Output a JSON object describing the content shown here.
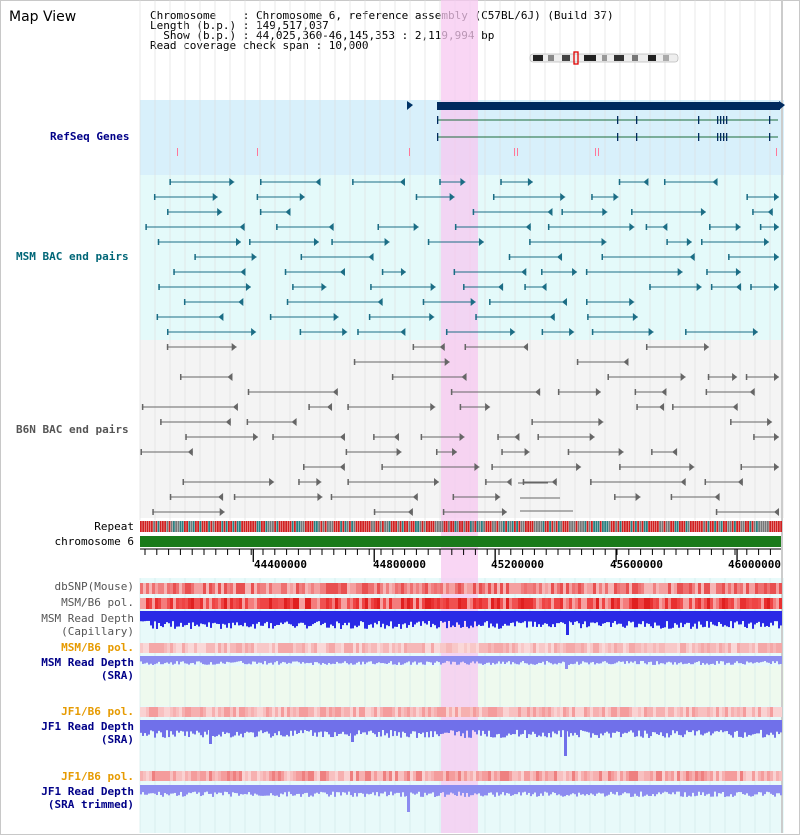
{
  "header": {
    "title": "Map View",
    "info_lines": [
      "Chromosome    : Chromosome 6, reference assembly (C57BL/6J) (Build 37)",
      "Length (b.p.) : 149,517,037",
      "  Show (b.p.) : 44,025,360-46,145,353 : 2,119,994 bp",
      "Read coverage check span : 10,000"
    ]
  },
  "tracks": {
    "refseq": "RefSeq Genes",
    "msm_bac": "MSM BAC end pairs",
    "b6n_bac": "B6N BAC end pairs",
    "repeat": "Repeat",
    "chromosome": "chromosome 6",
    "dbsnp": "dbSNP(Mouse)",
    "msm_b6_pol_1": "MSM/B6 pol.",
    "msm_depth_cap_1": "MSM Read Depth",
    "msm_depth_cap_2": "(Capillary)",
    "msm_b6_pol_2": "MSM/B6 pol.",
    "msm_depth_sra_1": "MSM Read Depth",
    "msm_depth_sra_2": "(SRA)",
    "jf1_b6_pol_1": "JF1/B6 pol.",
    "jf1_depth_sra_1": "JF1 Read Depth",
    "jf1_depth_sra_2": "(SRA)",
    "jf1_b6_pol_2": "JF1/B6 pol.",
    "jf1_depth_trim_1": "JF1 Read Depth",
    "jf1_depth_trim_2": "(SRA trimmed)"
  },
  "axis": {
    "ticks": [
      "44400000",
      "44800000",
      "45200000",
      "45600000",
      "46000000"
    ],
    "tick_values": [
      44400000,
      44800000,
      45200000,
      45600000,
      46000000
    ],
    "range": [
      44025360,
      46145353
    ]
  },
  "colors": {
    "label_blue": "#000088",
    "label_teal": "#006677",
    "label_gray": "#555555",
    "label_orange": "#e69a00",
    "highlight": "#f7c8f0",
    "refseq_bg": "#d8f0fb",
    "msm_bg": "#e4fafa",
    "b6n_bg": "#f4f4f4"
  }
}
